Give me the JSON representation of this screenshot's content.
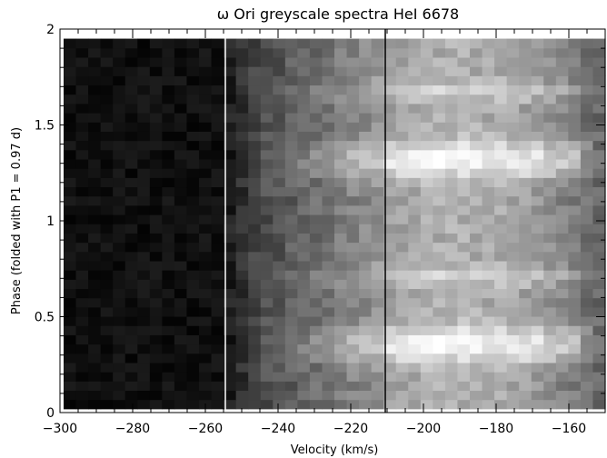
{
  "chart_data": {
    "type": "heatmap",
    "title": "ω Ori greyscale spectra  HeI 6678",
    "xlabel": "Velocity (km/s)",
    "ylabel": "Phase (folded with P1 = 0.97 d)",
    "xlim": [
      -300,
      -150
    ],
    "ylim": [
      0,
      2
    ],
    "colormap": "greyscale (dark = absorption, light = emission)",
    "x_ticks": [
      {
        "value": -300,
        "label": "−300"
      },
      {
        "value": -280,
        "label": "−280"
      },
      {
        "value": -260,
        "label": "−260"
      },
      {
        "value": -240,
        "label": "−240"
      },
      {
        "value": -220,
        "label": "−220"
      },
      {
        "value": -200,
        "label": "−200"
      },
      {
        "value": -180,
        "label": "−180"
      },
      {
        "value": -160,
        "label": "−160"
      }
    ],
    "y_ticks": [
      {
        "value": 0,
        "label": "0"
      },
      {
        "value": 0.5,
        "label": "0.5"
      },
      {
        "value": 1,
        "label": "1"
      },
      {
        "value": 1.5,
        "label": "1.5"
      },
      {
        "value": 2,
        "label": "2"
      }
    ],
    "x_minor_step": 5,
    "y_minor_step": 0.1,
    "data_extent": {
      "x": [
        -299,
        -150
      ],
      "y": [
        0.02,
        1.95
      ]
    },
    "grid": {
      "x_bins": 44,
      "y_bins": 40,
      "fold_period_bins": 20
    },
    "intensity_profile_note": "fraction of white (0-1) per velocity column; phases repeat every 1.0",
    "reference_lines": [
      {
        "x": -254.5,
        "color": "#ffffff"
      },
      {
        "x": -210.5,
        "color": "#000000"
      }
    ],
    "colors": {
      "axis": "#000000",
      "background": "#ffffff"
    }
  }
}
